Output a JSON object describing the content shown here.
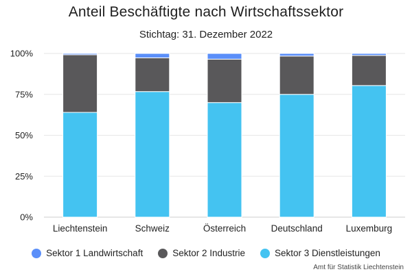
{
  "chart_data": {
    "type": "bar",
    "stacked": true,
    "title": "Anteil Beschäftigte nach Wirtschaftssektor",
    "subtitle": "Stichtag: 31. Dezember 2022",
    "categories": [
      "Liechtenstein",
      "Schweiz",
      "Österreich",
      "Deutschland",
      "Luxemburg"
    ],
    "series": [
      {
        "name": "Sektor 3 Dienstleistungen",
        "color": "#44c3f1",
        "values": [
          64.0,
          76.7,
          70.0,
          75.0,
          80.4
        ]
      },
      {
        "name": "Sektor 2 Industrie",
        "color": "#59585a",
        "values": [
          35.2,
          20.6,
          26.5,
          23.4,
          18.4
        ]
      },
      {
        "name": "Sektor 1 Landwirtschaft",
        "color": "#5b8ff9",
        "values": [
          0.8,
          2.7,
          3.5,
          1.6,
          1.2
        ]
      }
    ],
    "legend_order": [
      "Sektor 1 Landwirtschaft",
      "Sektor 2 Industrie",
      "Sektor 3 Dienstleistungen"
    ],
    "yticks": [
      "0%",
      "25%",
      "50%",
      "75%",
      "100%"
    ],
    "ylim": [
      0,
      100
    ],
    "xlabel": "",
    "ylabel": "",
    "grid": true,
    "legend_position": "bottom"
  },
  "credits": "Amt für Statistik Liechtenstein"
}
